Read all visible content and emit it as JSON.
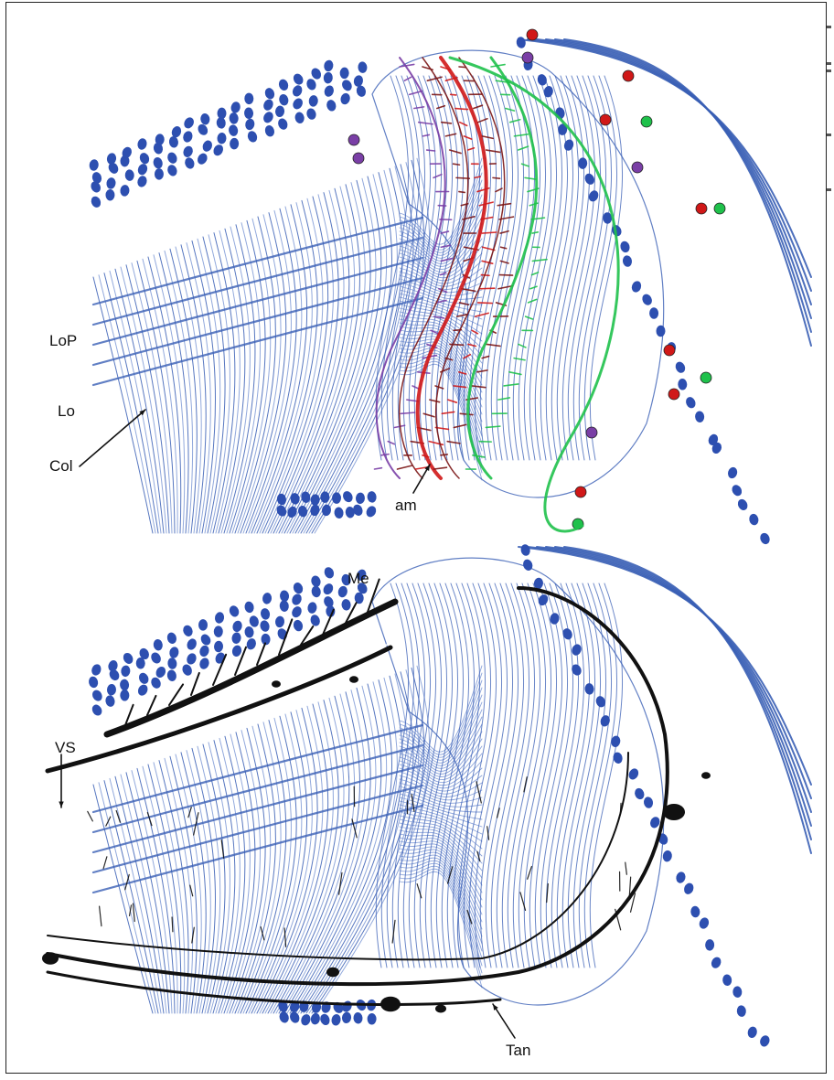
{
  "labels": {
    "lop": "LoP",
    "lo": "Lo",
    "col": "Col",
    "am": "am",
    "me": "Me",
    "vs": "VS",
    "tan": "Tan"
  },
  "colors": {
    "columnar_blue": "#3a5fb5",
    "light_blue": "#7f9ad6",
    "soma_blue": "#2d4fb0",
    "red": "#d01818",
    "dark_red": "#7a1414",
    "green": "#1fc14b",
    "purple": "#7a3fa6",
    "black": "#111111"
  }
}
